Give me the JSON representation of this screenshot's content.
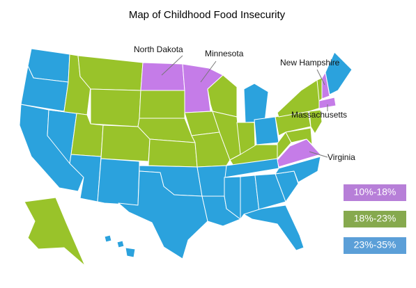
{
  "map": {
    "title": "Map of Childhood Food Insecurity",
    "labels": [
      "North Dakota",
      "Minnesota",
      "New Hampshire",
      "Massachusetts",
      "Virginia"
    ],
    "legend": [
      {
        "label": "10%-18%",
        "color": "#b77fd8",
        "map_color": "#c57ce8"
      },
      {
        "label": "18%-23%",
        "color": "#86a94e",
        "map_color": "#99c32a"
      },
      {
        "label": "23%-35%",
        "color": "#5b9fd8",
        "map_color": "#2ba2dd"
      }
    ]
  }
}
